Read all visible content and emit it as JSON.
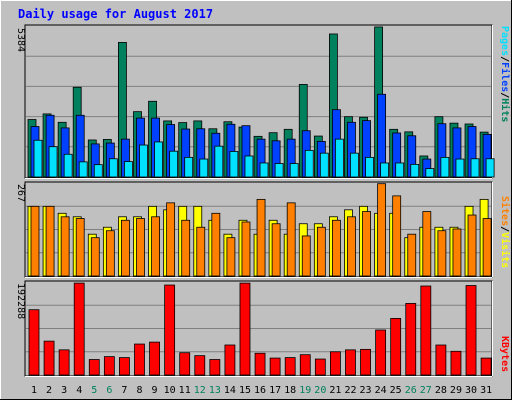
{
  "chart_data": [
    {
      "type": "bar",
      "title": "Daily usage for August 2017",
      "panel": "hits-files-pages-visits-top",
      "ylabel_parts": [
        "Pages",
        "/",
        "Files",
        "/",
        "Hits"
      ],
      "ylabel_colors": [
        "#00e0ff",
        "#000000",
        "#0040ff",
        "#000000",
        "#00805c"
      ],
      "max_label": "5384",
      "ylim": [
        0,
        5384
      ],
      "categories": [
        "1",
        "2",
        "3",
        "4",
        "5",
        "6",
        "7",
        "8",
        "9",
        "10",
        "11",
        "12",
        "13",
        "14",
        "15",
        "16",
        "17",
        "18",
        "19",
        "20",
        "21",
        "22",
        "23",
        "24",
        "25",
        "26",
        "27",
        "28",
        "29",
        "30",
        "31"
      ],
      "series": [
        {
          "name": "Hits",
          "color": "#00805c",
          "values": [
            2050,
            2250,
            1950,
            3200,
            1320,
            1340,
            4800,
            2330,
            2700,
            2000,
            1940,
            2000,
            1720,
            1970,
            1780,
            1450,
            1580,
            1700,
            3300,
            1460,
            5100,
            2150,
            2130,
            5350,
            1700,
            1610,
            750,
            2150,
            1920,
            1890,
            1600
          ]
        },
        {
          "name": "Files",
          "color": "#0040ff",
          "values": [
            1800,
            2200,
            1750,
            2200,
            1180,
            1210,
            1350,
            2100,
            2100,
            1870,
            1710,
            1720,
            1560,
            1880,
            1830,
            1350,
            1290,
            1350,
            1650,
            1270,
            2400,
            1950,
            2010,
            2950,
            1570,
            1470,
            640,
            1900,
            1750,
            1800,
            1520
          ]
        },
        {
          "name": "Pages",
          "color": "#00e0ff",
          "values": [
            1310,
            1080,
            810,
            540,
            440,
            650,
            550,
            1140,
            1250,
            920,
            700,
            640,
            1100,
            910,
            750,
            500,
            480,
            480,
            950,
            850,
            1350,
            850,
            700,
            500,
            500,
            450,
            300,
            700,
            640,
            650,
            650
          ]
        }
      ]
    },
    {
      "type": "bar",
      "panel": "sites-visits-middle",
      "ylabel_parts": [
        "Sites",
        "/",
        "Visits"
      ],
      "ylabel_colors": [
        "#ff8000",
        "#000000",
        "#ffff00"
      ],
      "max_label": "267",
      "ylim": [
        0,
        267
      ],
      "categories": [
        "1",
        "2",
        "3",
        "4",
        "5",
        "6",
        "7",
        "8",
        "9",
        "10",
        "11",
        "12",
        "13",
        "14",
        "15",
        "16",
        "17",
        "18",
        "19",
        "20",
        "21",
        "22",
        "23",
        "24",
        "25",
        "26",
        "27",
        "28",
        "29",
        "30",
        "31"
      ],
      "series": [
        {
          "name": "Visits",
          "color": "#ffff00",
          "values": [
            200,
            200,
            180,
            170,
            120,
            140,
            170,
            170,
            200,
            190,
            200,
            200,
            160,
            120,
            160,
            120,
            160,
            120,
            150,
            150,
            170,
            190,
            200,
            180,
            180,
            110,
            140,
            140,
            140,
            200,
            220
          ]
        },
        {
          "name": "Sites",
          "color": "#ff8000",
          "values": [
            200,
            200,
            170,
            165,
            110,
            130,
            160,
            165,
            170,
            210,
            160,
            140,
            180,
            110,
            155,
            220,
            150,
            210,
            115,
            140,
            160,
            170,
            185,
            265,
            230,
            120,
            185,
            130,
            135,
            175,
            165
          ]
        }
      ]
    },
    {
      "type": "bar",
      "panel": "kbytes-bottom",
      "ylabel_parts": [
        "KBytes"
      ],
      "ylabel_colors": [
        "#ff0000"
      ],
      "max_label": "192288",
      "ylim": [
        0,
        192288
      ],
      "categories": [
        "1",
        "2",
        "3",
        "4",
        "5",
        "6",
        "7",
        "8",
        "9",
        "10",
        "11",
        "12",
        "13",
        "14",
        "15",
        "16",
        "17",
        "18",
        "19",
        "20",
        "21",
        "22",
        "23",
        "24",
        "25",
        "26",
        "27",
        "28",
        "29",
        "30",
        "31"
      ],
      "series": [
        {
          "name": "KBytes",
          "color": "#ff0000",
          "values": [
            135000,
            70000,
            52000,
            190000,
            32000,
            38000,
            36000,
            64000,
            68000,
            186000,
            46000,
            40000,
            32000,
            62000,
            190000,
            45000,
            35000,
            36000,
            42000,
            33000,
            48000,
            52000,
            53000,
            93000,
            117000,
            148000,
            184000,
            62000,
            49000,
            185000,
            35000
          ]
        }
      ]
    }
  ],
  "x_axis": {
    "labels": [
      "1",
      "2",
      "3",
      "4",
      "5",
      "6",
      "7",
      "8",
      "9",
      "10",
      "11",
      "12",
      "13",
      "14",
      "15",
      "16",
      "17",
      "18",
      "19",
      "20",
      "21",
      "22",
      "23",
      "24",
      "25",
      "26",
      "27",
      "28",
      "29",
      "30",
      "31"
    ],
    "weekend_days": [
      5,
      6,
      12,
      13,
      19,
      20,
      26,
      27
    ],
    "weekday_color": "#000000",
    "weekend_color": "#00805c"
  },
  "colors": {
    "background": "#c0c0c0",
    "title": "#0000ff",
    "gridline": "#808080"
  }
}
